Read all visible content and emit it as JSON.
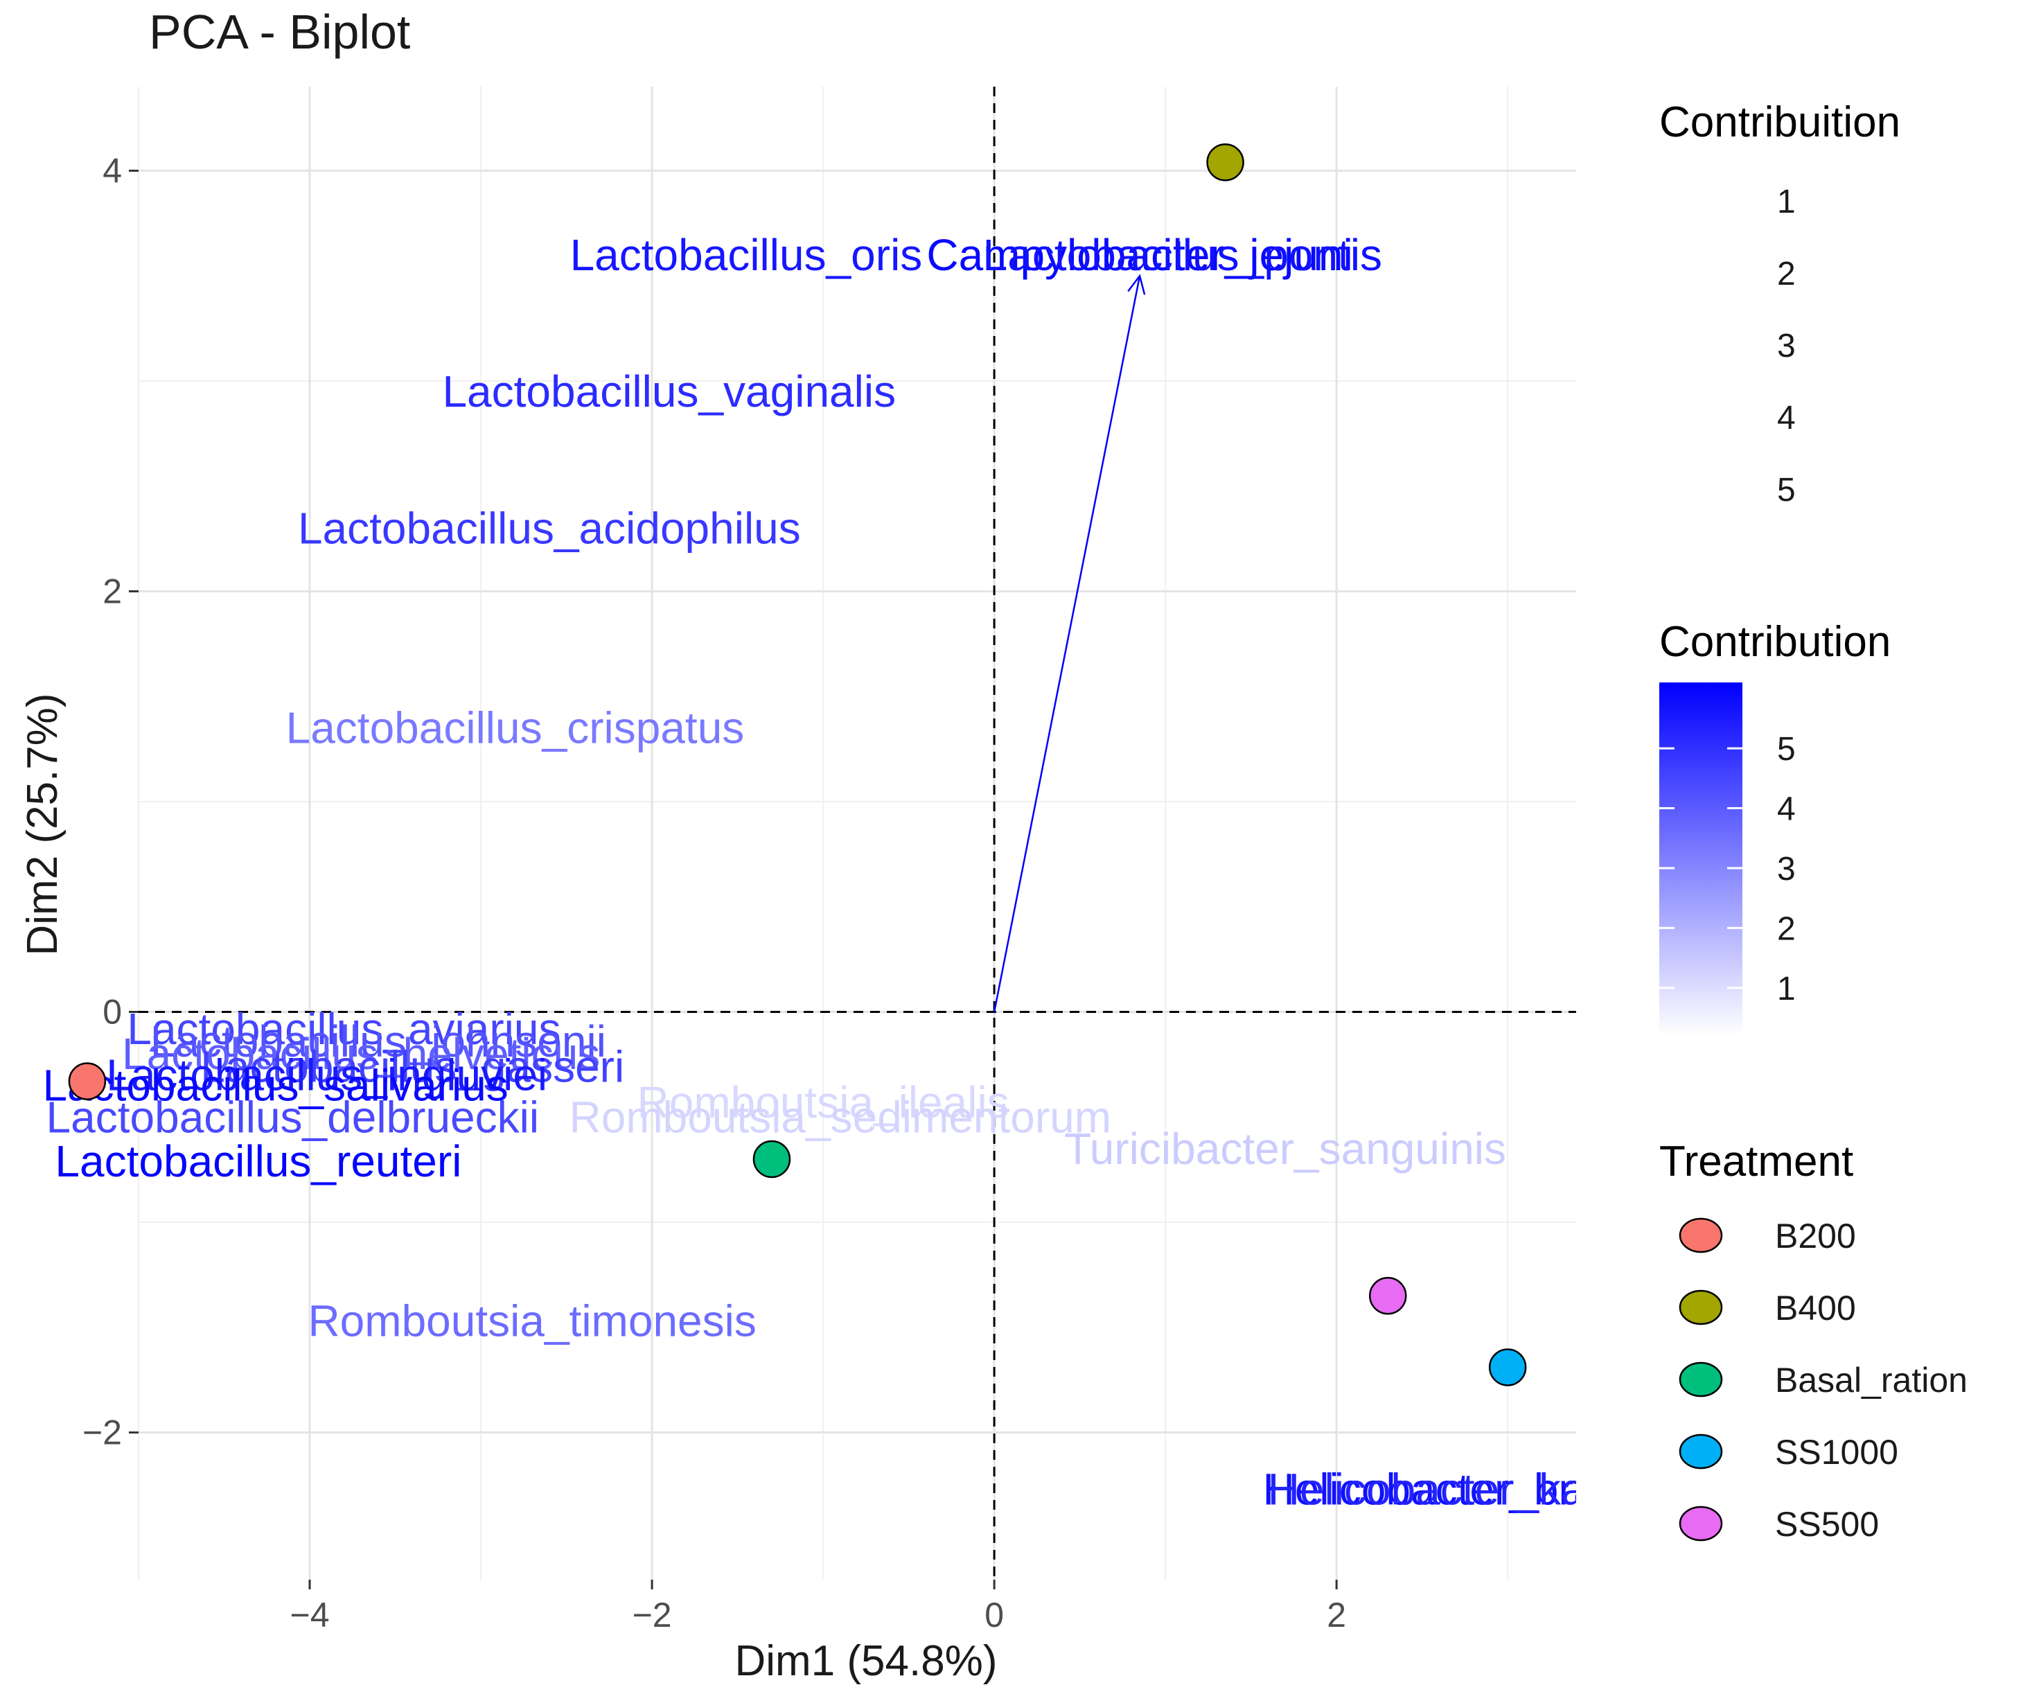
{
  "chart_data": {
    "type": "scatter",
    "subtype": "pca-biplot",
    "title": "PCA - Biplot",
    "xlabel": "Dim1 (54.8%)",
    "ylabel": "Dim2 (25.7%)",
    "xlim": [
      -5.0,
      3.4
    ],
    "ylim": [
      -2.7,
      4.4
    ],
    "xticks": [
      -4,
      -2,
      0,
      2
    ],
    "yticks": [
      -2,
      0,
      2,
      4
    ],
    "xtick_labels": [
      "−4",
      "−2",
      "0",
      "2"
    ],
    "ytick_labels": [
      "−2",
      "0",
      "2",
      "4"
    ],
    "grid": true,
    "reference_lines": {
      "x": 0,
      "y": 0,
      "style": "dashed"
    },
    "individuals": [
      {
        "treatment": "B200",
        "x": -5.3,
        "y": -0.33
      },
      {
        "treatment": "B400",
        "x": 1.35,
        "y": 4.04
      },
      {
        "treatment": "Basal_ration",
        "x": -1.3,
        "y": -0.7
      },
      {
        "treatment": "SS1000",
        "x": 3.0,
        "y": -1.69
      },
      {
        "treatment": "SS500",
        "x": 2.3,
        "y": -1.35
      }
    ],
    "treatment_colors": {
      "B200": "#F8766D",
      "B400": "#A3A500",
      "Basal_ration": "#00BF7D",
      "SS1000": "#00B0F6",
      "SS500": "#E76BF3"
    },
    "arrow": {
      "x0": 0,
      "y0": 0,
      "x1": 0.85,
      "y1": 3.5,
      "color": "#0000FF"
    },
    "variable_labels": [
      {
        "label": "Lactobacillus_oris",
        "x": -1.45,
        "y": 3.6,
        "contrib": 5.6
      },
      {
        "label": "Campylobacter_jejuni",
        "x": 0.85,
        "y": 3.6,
        "contrib": 5.9
      },
      {
        "label": "Lactobacillus_pontis",
        "x": 1.1,
        "y": 3.6,
        "contrib": 5.7
      },
      {
        "label": "Lactobacillus_vaginalis",
        "x": -1.9,
        "y": 2.95,
        "contrib": 5.1
      },
      {
        "label": "Lactobacillus_acidophilus",
        "x": -2.6,
        "y": 2.3,
        "contrib": 4.8
      },
      {
        "label": "Lactobacillus_crispatus",
        "x": -2.8,
        "y": 1.35,
        "contrib": 3.3
      },
      {
        "label": "Lactobacillus_aviarius",
        "x": -3.8,
        "y": -0.08,
        "contrib": 4.5
      },
      {
        "label": "Lactobacillus_johnsonii",
        "x": -3.6,
        "y": -0.14,
        "contrib": 4.2
      },
      {
        "label": "Lactobacillus_helveticus",
        "x": -3.7,
        "y": -0.2,
        "contrib": 3.9
      },
      {
        "label": "Lactobacillus_gasseri",
        "x": -3.4,
        "y": -0.26,
        "contrib": 4.6
      },
      {
        "label": "Lactobacillus_ingluviei",
        "x": -3.9,
        "y": -0.3,
        "contrib": 5.5
      },
      {
        "label": "Lactobacillus_salivarius",
        "x": -4.2,
        "y": -0.35,
        "contrib": 5.9
      },
      {
        "label": "Lactobacillus_delbrueckii",
        "x": -4.1,
        "y": -0.5,
        "contrib": 4.4
      },
      {
        "label": "Lactobacillus_reuteri",
        "x": -4.3,
        "y": -0.71,
        "contrib": 6.0
      },
      {
        "label": "Romboutsia_ilealis",
        "x": -1.0,
        "y": -0.43,
        "contrib": 1.1
      },
      {
        "label": "Romboutsia_sedimentorum",
        "x": -0.9,
        "y": -0.5,
        "contrib": 1.2
      },
      {
        "label": "Turicibacter_sanguinis",
        "x": 1.7,
        "y": -0.65,
        "contrib": 1.4
      },
      {
        "label": "Romboutsia_timonesis",
        "x": -2.7,
        "y": -1.47,
        "contrib": 3.6
      },
      {
        "label": "Helicobacter_brantae",
        "x": 2.8,
        "y": -2.27,
        "contrib": 5.7
      },
      {
        "label": "Helicobacter_kayseri",
        "x": 2.8,
        "y": -2.27,
        "contrib": 5.3
      }
    ],
    "legend_contribuition": {
      "title": "Contribuition",
      "items": [
        "1",
        "2",
        "3",
        "4",
        "5"
      ]
    },
    "legend_contribution": {
      "title": "Contribution",
      "range": [
        0.2,
        6.1
      ],
      "ticks": [
        1,
        2,
        3,
        4,
        5
      ],
      "tick_labels": [
        "1",
        "2",
        "3",
        "4",
        "5"
      ],
      "low_color": "#FFFFFF",
      "high_color": "#0000FF"
    },
    "legend_treatment": {
      "title": "Treatment",
      "items": [
        "B200",
        "B400",
        "Basal_ration",
        "SS1000",
        "SS500"
      ]
    },
    "legend_position": "right"
  }
}
